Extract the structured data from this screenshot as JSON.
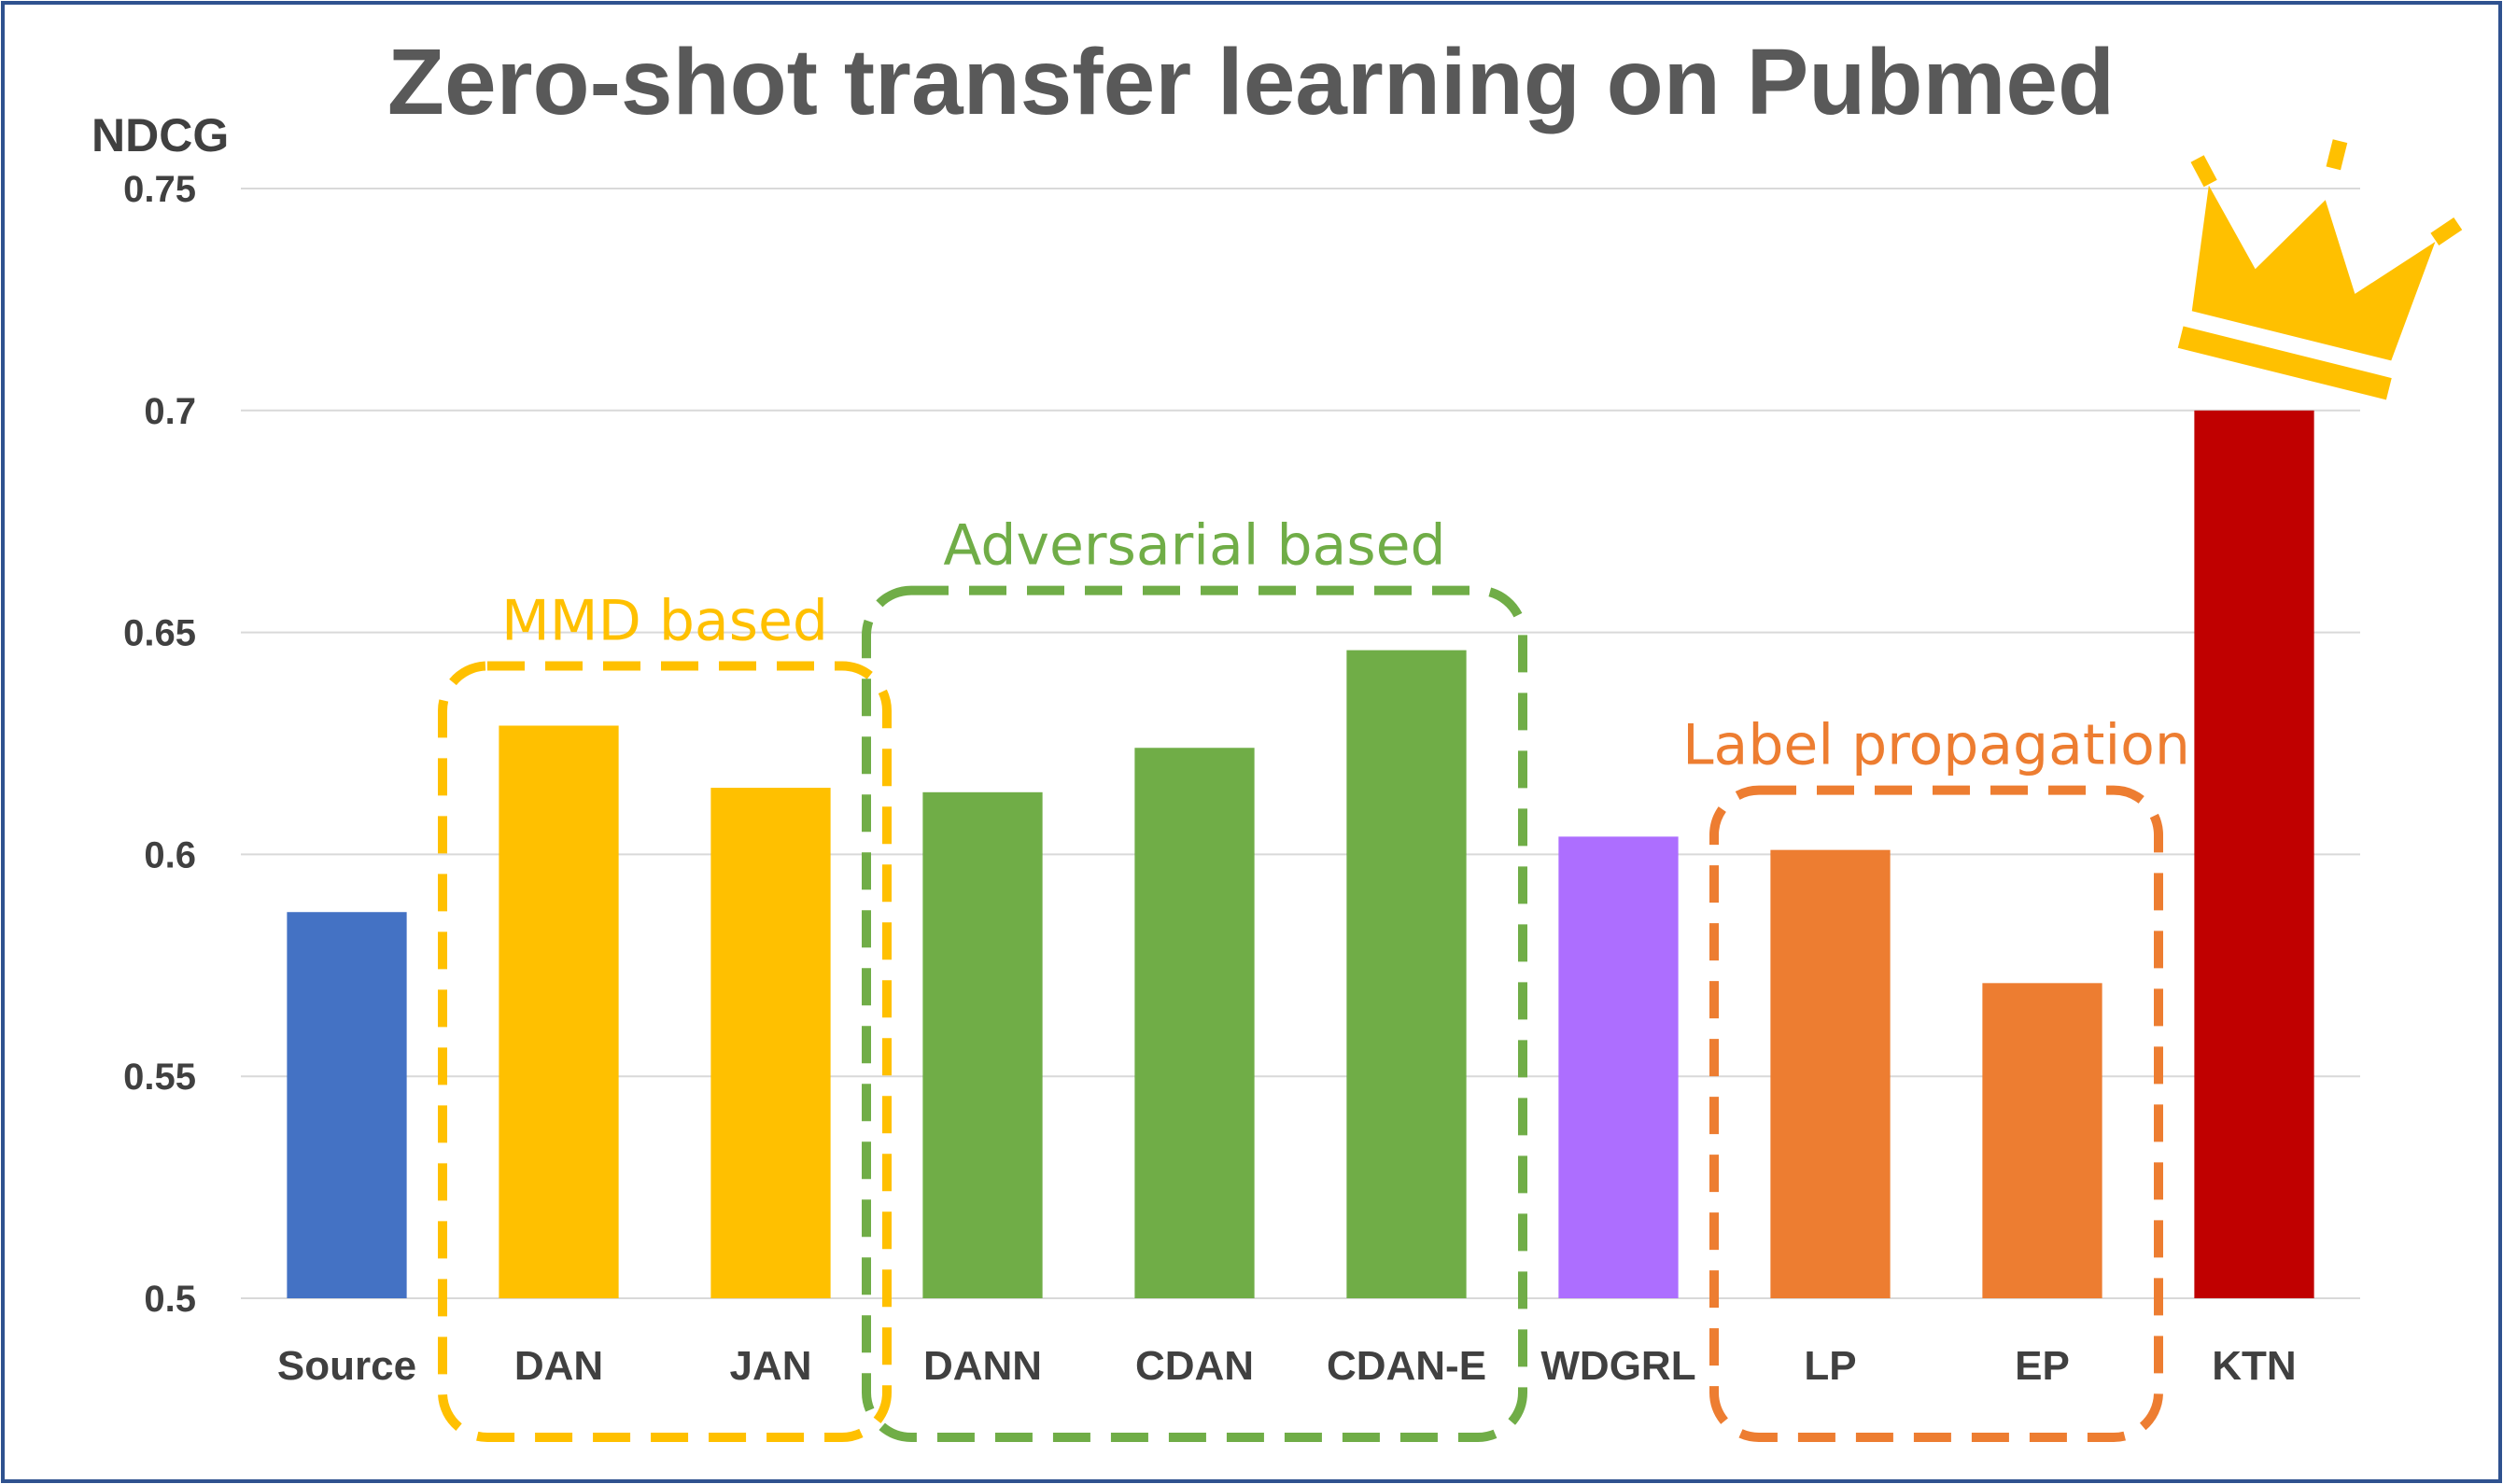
{
  "chart_data": {
    "type": "bar",
    "title": "Zero-shot transfer learning on Pubmed",
    "ylabel": "NDCG",
    "xlabel": "",
    "ylim": [
      0.5,
      0.75
    ],
    "yticks": [
      "0.5",
      "0.55",
      "0.6",
      "0.65",
      "0.7",
      "0.75"
    ],
    "grid": true,
    "categories": [
      "Source",
      "DAN",
      "JAN",
      "DANN",
      "CDAN",
      "CDAN-E",
      "WDGRL",
      "LP",
      "EP",
      "KTN"
    ],
    "values": [
      0.587,
      0.629,
      0.615,
      0.614,
      0.624,
      0.646,
      0.604,
      0.601,
      0.571,
      0.7
    ],
    "colors": [
      "#4472C4",
      "#FFC000",
      "#FFC000",
      "#70AD47",
      "#70AD47",
      "#70AD47",
      "#AD6EFF",
      "#ED7D31",
      "#ED7D31",
      "#C00000"
    ],
    "groups": [
      {
        "label": "MMD based",
        "color": "#FFC000",
        "first": 1,
        "last": 2
      },
      {
        "label": "Adversarial based",
        "color": "#70AD47",
        "first": 3,
        "last": 5
      },
      {
        "label": "Label propagation",
        "color": "#ED7D31",
        "first": 7,
        "last": 8
      }
    ],
    "highlight": {
      "index": 9,
      "icon": "crown-icon",
      "color": "#FFC000"
    }
  }
}
